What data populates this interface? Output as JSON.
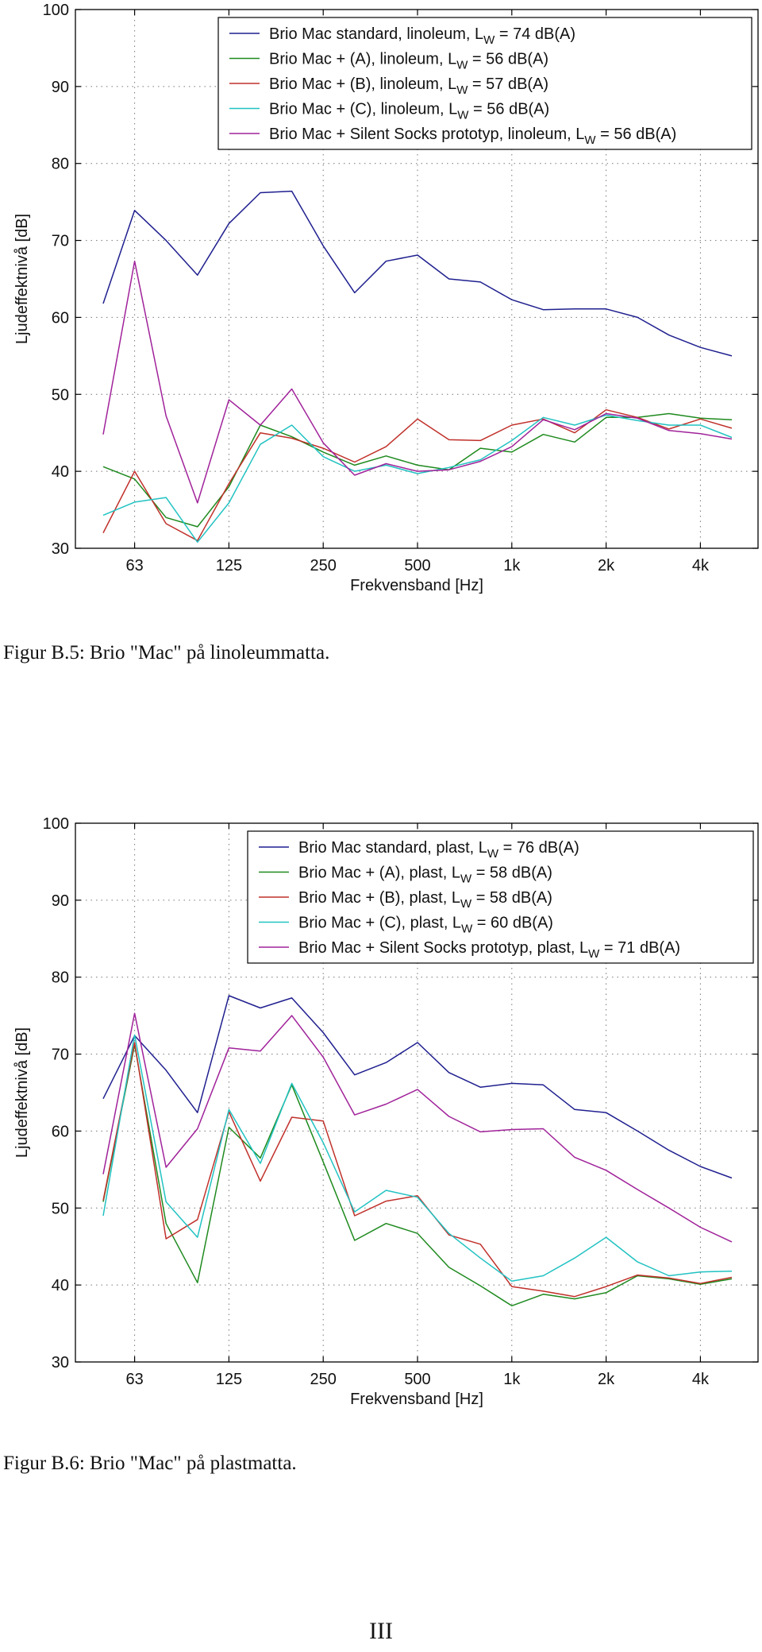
{
  "chart_data": [
    {
      "type": "line",
      "xlabel": "Frekvensband [Hz]",
      "ylabel": "Ljudeffektnivå [dB]",
      "ylim": [
        30,
        100
      ],
      "yticks": [
        "30",
        "40",
        "50",
        "60",
        "70",
        "80",
        "90",
        "100"
      ],
      "x": [
        "50",
        "63",
        "80",
        "100",
        "125",
        "160",
        "200",
        "250",
        "315",
        "400",
        "500",
        "630",
        "800",
        "1k",
        "1.25k",
        "1.6k",
        "2k",
        "2.5k",
        "3.15k",
        "4k",
        "5k"
      ],
      "xticks": [
        "63",
        "125",
        "250",
        "500",
        "1k",
        "2k",
        "4k"
      ],
      "grid": true,
      "legend_position": "top-right",
      "legend_suffix": " dB(A)",
      "series": [
        {
          "label": "Brio Mac standard, linoleum, L",
          "sub": "W",
          "value": "= 74",
          "color": "#1f1f8f",
          "values": [
            61.8,
            73.9,
            70.0,
            65.5,
            72.2,
            76.2,
            76.4,
            69.3,
            63.2,
            67.3,
            68.1,
            65.0,
            64.6,
            62.3,
            61.0,
            61.1,
            61.1,
            60.0,
            57.7,
            56.1,
            55.0
          ]
        },
        {
          "label": "Brio Mac + (A), linoleum, L",
          "sub": "W",
          "value": "= 56",
          "color": "#1e8a1e",
          "values": [
            40.6,
            39.0,
            34.0,
            32.8,
            38.0,
            46.0,
            44.5,
            42.5,
            40.8,
            42.0,
            40.8,
            40.2,
            43.0,
            42.5,
            44.8,
            43.8,
            47.0,
            47.0,
            47.5,
            46.9,
            46.7
          ]
        },
        {
          "label": "Brio Mac + (B), linoleum, L",
          "sub": "W",
          "value": "= 57",
          "color": "#c0302a",
          "values": [
            32.0,
            40.0,
            33.2,
            31.0,
            38.4,
            45.0,
            44.3,
            43.0,
            41.2,
            43.2,
            46.8,
            44.1,
            44.0,
            46.0,
            46.8,
            45.0,
            48.0,
            47.0,
            45.5,
            46.8,
            45.6
          ]
        },
        {
          "label": "Brio Mac + (C), linoleum, L",
          "sub": "W",
          "value": "= 56",
          "color": "#22c2c2",
          "values": [
            34.3,
            36.0,
            36.6,
            30.8,
            35.9,
            43.5,
            46.0,
            41.9,
            40.0,
            40.8,
            39.7,
            40.5,
            41.5,
            44.0,
            47.0,
            46.0,
            47.3,
            46.6,
            46.0,
            46.0,
            44.4
          ]
        },
        {
          "label": "Brio Mac + Silent Socks prototyp, linoleum, L",
          "sub": "W",
          "value": "= 56",
          "color": "#a0229a",
          "values": [
            44.8,
            67.3,
            47.2,
            35.9,
            49.3,
            46.0,
            50.7,
            43.7,
            39.5,
            41.0,
            40.0,
            40.2,
            41.3,
            43.2,
            46.7,
            45.4,
            47.5,
            46.9,
            45.3,
            44.9,
            44.2
          ]
        }
      ]
    },
    {
      "type": "line",
      "xlabel": "Frekvensband [Hz]",
      "ylabel": "Ljudeffektnivå [dB]",
      "ylim": [
        30,
        100
      ],
      "yticks": [
        "30",
        "40",
        "50",
        "60",
        "70",
        "80",
        "90",
        "100"
      ],
      "x": [
        "50",
        "63",
        "80",
        "100",
        "125",
        "160",
        "200",
        "250",
        "315",
        "400",
        "500",
        "630",
        "800",
        "1k",
        "1.25k",
        "1.6k",
        "2k",
        "2.5k",
        "3.15k",
        "4k",
        "5k"
      ],
      "xticks": [
        "63",
        "125",
        "250",
        "500",
        "1k",
        "2k",
        "4k"
      ],
      "grid": true,
      "legend_position": "top-right",
      "legend_suffix": " dB(A)",
      "series": [
        {
          "label": "Brio Mac standard, plast, L",
          "sub": "W",
          "value": "= 76",
          "color": "#1f1f8f",
          "values": [
            64.2,
            72.4,
            67.9,
            62.4,
            77.6,
            76.0,
            77.3,
            72.8,
            67.3,
            68.9,
            71.5,
            67.6,
            65.7,
            66.2,
            66.0,
            62.8,
            62.4,
            60.0,
            57.5,
            55.4,
            53.9
          ]
        },
        {
          "label": "Brio Mac + (A), plast, L",
          "sub": "W",
          "value": "= 58",
          "color": "#1e8a1e",
          "values": [
            50.8,
            71.2,
            48.0,
            40.3,
            60.5,
            56.5,
            66.0,
            56.0,
            45.8,
            48.0,
            46.7,
            42.3,
            39.9,
            37.3,
            38.8,
            38.2,
            39.0,
            41.2,
            40.8,
            40.1,
            40.8
          ]
        },
        {
          "label": "Brio Mac + (B), plast, L",
          "sub": "W",
          "value": "= 58",
          "color": "#c0302a",
          "values": [
            51.0,
            71.5,
            46.0,
            48.5,
            62.5,
            53.5,
            61.8,
            61.3,
            49.0,
            50.9,
            51.6,
            46.5,
            45.3,
            39.8,
            39.2,
            38.5,
            39.8,
            41.3,
            40.9,
            40.2,
            41.0
          ]
        },
        {
          "label": "Brio Mac + (C), plast, L",
          "sub": "W",
          "value": "= 60",
          "color": "#22c2c2",
          "values": [
            49.0,
            72.5,
            50.8,
            46.2,
            62.8,
            55.8,
            66.2,
            58.5,
            49.5,
            52.3,
            51.4,
            46.7,
            43.5,
            40.5,
            41.2,
            43.5,
            46.2,
            43.0,
            41.2,
            41.7,
            41.8
          ]
        },
        {
          "label": "Brio Mac + Silent Socks prototyp, plast, L",
          "sub": "W",
          "value": "= 71",
          "color": "#a0229a",
          "values": [
            54.4,
            75.3,
            55.3,
            60.3,
            70.8,
            70.4,
            75.0,
            69.6,
            62.1,
            63.5,
            65.4,
            61.9,
            59.9,
            60.2,
            60.3,
            56.6,
            54.9,
            52.4,
            50.0,
            47.5,
            45.6
          ]
        }
      ]
    }
  ],
  "captions": {
    "figure_b5": "Figur B.5: Brio \"Mac\" på linoleummatta.",
    "figure_b6": "Figur B.6: Brio \"Mac\" på plastmatta."
  },
  "page_number": "III"
}
